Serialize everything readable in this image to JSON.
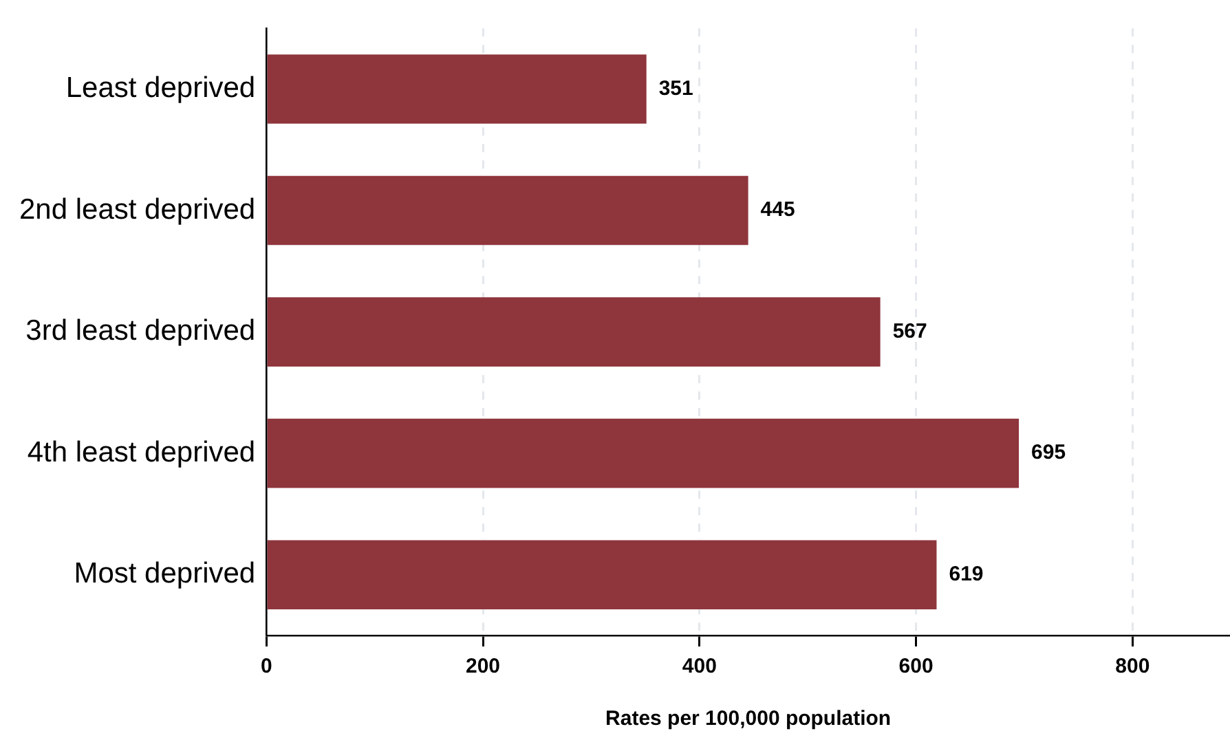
{
  "chart_data": {
    "type": "bar",
    "orientation": "horizontal",
    "xlabel": "Rates per 100,000 population",
    "categories": [
      "Least deprived",
      "2nd least deprived",
      "3rd least deprived",
      "4th least deprived",
      "Most deprived"
    ],
    "values": [
      351,
      445,
      567,
      695,
      619
    ],
    "color": "#8f353c",
    "xlim": [
      0,
      890
    ],
    "xticks": [
      0,
      200,
      400,
      600,
      800
    ],
    "grid": "x",
    "data_labels": true,
    "legend": false
  }
}
